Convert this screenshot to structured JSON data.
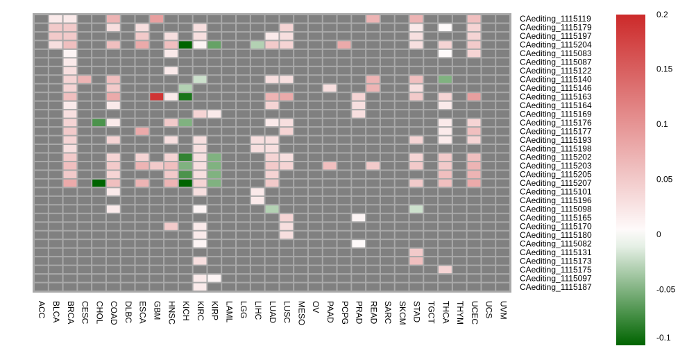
{
  "chart_data": {
    "type": "heatmap",
    "columns": [
      "ACC",
      "BLCA",
      "BRCA",
      "CESC",
      "CHOL",
      "COAD",
      "DLBC",
      "ESCA",
      "GBM",
      "HNSC",
      "KICH",
      "KIRC",
      "KIRP",
      "LAML",
      "LGG",
      "LIHC",
      "LUAD",
      "LUSC",
      "MESO",
      "OV",
      "PAAD",
      "PCPG",
      "PRAD",
      "READ",
      "SARC",
      "SKCM",
      "STAD",
      "TGCT",
      "THCA",
      "THYM",
      "UCEC",
      "UCS",
      "UVM"
    ],
    "rows": [
      "CAediting_1115119",
      "CAediting_1115179",
      "CAediting_1115197",
      "CAediting_1115204",
      "CAediting_1115083",
      "CAediting_1115087",
      "CAediting_1115122",
      "CAediting_1115140",
      "CAediting_1115146",
      "CAediting_1115163",
      "CAediting_1115164",
      "CAediting_1115169",
      "CAediting_1115176",
      "CAediting_1115177",
      "CAediting_1115193",
      "CAediting_1115198",
      "CAediting_1115202",
      "CAediting_1115203",
      "CAediting_1115205",
      "CAediting_1115207",
      "CAediting_1115101",
      "CAediting_1115196",
      "CAediting_1115098",
      "CAediting_1115165",
      "CAediting_1115170",
      "CAediting_1115180",
      "CAediting_1115082",
      "CAediting_1115131",
      "CAediting_1115173",
      "CAediting_1115175",
      "CAediting_1115097",
      "CAediting_1115187"
    ],
    "missing_color": "#808080",
    "cells": [
      {
        "row": 0,
        "col": 1,
        "value": 0.02
      },
      {
        "row": 0,
        "col": 2,
        "value": 0.02
      },
      {
        "row": 0,
        "col": 5,
        "value": 0.07
      },
      {
        "row": 0,
        "col": 8,
        "value": 0.09
      },
      {
        "row": 0,
        "col": 23,
        "value": 0.07
      },
      {
        "row": 0,
        "col": 26,
        "value": 0.07
      },
      {
        "row": 0,
        "col": 30,
        "value": 0.06
      },
      {
        "row": 1,
        "col": 1,
        "value": 0.05
      },
      {
        "row": 1,
        "col": 2,
        "value": 0.05
      },
      {
        "row": 1,
        "col": 5,
        "value": 0.03
      },
      {
        "row": 1,
        "col": 7,
        "value": 0.03
      },
      {
        "row": 1,
        "col": 11,
        "value": 0.03
      },
      {
        "row": 1,
        "col": 17,
        "value": 0.04
      },
      {
        "row": 1,
        "col": 26,
        "value": 0.02
      },
      {
        "row": 1,
        "col": 28,
        "value": 0.005
      },
      {
        "row": 1,
        "col": 30,
        "value": 0.04
      },
      {
        "row": 2,
        "col": 1,
        "value": 0.05
      },
      {
        "row": 2,
        "col": 2,
        "value": 0.05
      },
      {
        "row": 2,
        "col": 7,
        "value": 0.05
      },
      {
        "row": 2,
        "col": 9,
        "value": 0.03
      },
      {
        "row": 2,
        "col": 11,
        "value": 0.03
      },
      {
        "row": 2,
        "col": 16,
        "value": 0.02
      },
      {
        "row": 2,
        "col": 17,
        "value": 0.03
      },
      {
        "row": 2,
        "col": 26,
        "value": 0.03
      },
      {
        "row": 2,
        "col": 30,
        "value": 0.04
      },
      {
        "row": 3,
        "col": 1,
        "value": 0.03
      },
      {
        "row": 3,
        "col": 2,
        "value": 0.06
      },
      {
        "row": 3,
        "col": 5,
        "value": 0.06
      },
      {
        "row": 3,
        "col": 7,
        "value": 0.08
      },
      {
        "row": 3,
        "col": 9,
        "value": 0.06
      },
      {
        "row": 3,
        "col": 10,
        "value": -0.1
      },
      {
        "row": 3,
        "col": 11,
        "value": 0.01
      },
      {
        "row": 3,
        "col": 12,
        "value": -0.06
      },
      {
        "row": 3,
        "col": 15,
        "value": -0.03
      },
      {
        "row": 3,
        "col": 16,
        "value": 0.05
      },
      {
        "row": 3,
        "col": 17,
        "value": 0.04
      },
      {
        "row": 3,
        "col": 21,
        "value": 0.08
      },
      {
        "row": 3,
        "col": 26,
        "value": 0.03
      },
      {
        "row": 3,
        "col": 28,
        "value": 0.04
      },
      {
        "row": 3,
        "col": 30,
        "value": 0.05
      },
      {
        "row": 4,
        "col": 2,
        "value": 0.01
      },
      {
        "row": 4,
        "col": 9,
        "value": 0.02
      },
      {
        "row": 4,
        "col": 28,
        "value": 0.005
      },
      {
        "row": 4,
        "col": 30,
        "value": 0.04
      },
      {
        "row": 5,
        "col": 2,
        "value": 0.02
      },
      {
        "row": 6,
        "col": 2,
        "value": 0.03
      },
      {
        "row": 6,
        "col": 9,
        "value": 0.02
      },
      {
        "row": 7,
        "col": 2,
        "value": 0.04
      },
      {
        "row": 7,
        "col": 3,
        "value": 0.07
      },
      {
        "row": 7,
        "col": 5,
        "value": 0.06
      },
      {
        "row": 7,
        "col": 11,
        "value": -0.02
      },
      {
        "row": 7,
        "col": 16,
        "value": 0.03
      },
      {
        "row": 7,
        "col": 17,
        "value": 0.03
      },
      {
        "row": 7,
        "col": 23,
        "value": 0.07
      },
      {
        "row": 7,
        "col": 26,
        "value": 0.06
      },
      {
        "row": 7,
        "col": 28,
        "value": -0.05
      },
      {
        "row": 8,
        "col": 2,
        "value": 0.04
      },
      {
        "row": 8,
        "col": 5,
        "value": 0.05
      },
      {
        "row": 8,
        "col": 10,
        "value": -0.03
      },
      {
        "row": 8,
        "col": 20,
        "value": 0.03
      },
      {
        "row": 8,
        "col": 23,
        "value": 0.07
      },
      {
        "row": 8,
        "col": 26,
        "value": 0.03
      },
      {
        "row": 9,
        "col": 2,
        "value": 0.06
      },
      {
        "row": 9,
        "col": 5,
        "value": 0.08
      },
      {
        "row": 9,
        "col": 8,
        "value": 0.19
      },
      {
        "row": 9,
        "col": 9,
        "value": 0.02
      },
      {
        "row": 9,
        "col": 10,
        "value": -0.09
      },
      {
        "row": 9,
        "col": 16,
        "value": 0.07
      },
      {
        "row": 9,
        "col": 17,
        "value": 0.08
      },
      {
        "row": 9,
        "col": 22,
        "value": 0.04
      },
      {
        "row": 9,
        "col": 26,
        "value": 0.05
      },
      {
        "row": 9,
        "col": 28,
        "value": 0.04
      },
      {
        "row": 9,
        "col": 30,
        "value": 0.09
      },
      {
        "row": 10,
        "col": 2,
        "value": 0.02
      },
      {
        "row": 10,
        "col": 5,
        "value": 0.02
      },
      {
        "row": 10,
        "col": 16,
        "value": 0.04
      },
      {
        "row": 10,
        "col": 22,
        "value": 0.03
      },
      {
        "row": 10,
        "col": 28,
        "value": 0.02
      },
      {
        "row": 11,
        "col": 2,
        "value": 0.03
      },
      {
        "row": 11,
        "col": 11,
        "value": 0.04
      },
      {
        "row": 11,
        "col": 12,
        "value": 0.02
      },
      {
        "row": 11,
        "col": 22,
        "value": 0.03
      },
      {
        "row": 12,
        "col": 2,
        "value": 0.04
      },
      {
        "row": 12,
        "col": 4,
        "value": -0.07
      },
      {
        "row": 12,
        "col": 5,
        "value": 0.02
      },
      {
        "row": 12,
        "col": 9,
        "value": 0.05
      },
      {
        "row": 12,
        "col": 10,
        "value": -0.05
      },
      {
        "row": 12,
        "col": 16,
        "value": 0.02
      },
      {
        "row": 12,
        "col": 17,
        "value": 0.03
      },
      {
        "row": 12,
        "col": 28,
        "value": 0.02
      },
      {
        "row": 12,
        "col": 30,
        "value": 0.04
      },
      {
        "row": 13,
        "col": 2,
        "value": 0.05
      },
      {
        "row": 13,
        "col": 7,
        "value": 0.08
      },
      {
        "row": 13,
        "col": 17,
        "value": 0.04
      },
      {
        "row": 13,
        "col": 28,
        "value": 0.02
      },
      {
        "row": 13,
        "col": 30,
        "value": 0.06
      },
      {
        "row": 14,
        "col": 2,
        "value": 0.04
      },
      {
        "row": 14,
        "col": 5,
        "value": 0.04
      },
      {
        "row": 14,
        "col": 9,
        "value": 0.03
      },
      {
        "row": 14,
        "col": 11,
        "value": 0.03
      },
      {
        "row": 14,
        "col": 15,
        "value": 0.03
      },
      {
        "row": 14,
        "col": 16,
        "value": 0.03
      },
      {
        "row": 14,
        "col": 26,
        "value": 0.04
      },
      {
        "row": 14,
        "col": 28,
        "value": 0.02
      },
      {
        "row": 14,
        "col": 30,
        "value": 0.04
      },
      {
        "row": 15,
        "col": 2,
        "value": 0.03
      },
      {
        "row": 15,
        "col": 11,
        "value": 0.03
      },
      {
        "row": 15,
        "col": 15,
        "value": 0.03
      },
      {
        "row": 15,
        "col": 16,
        "value": 0.03
      },
      {
        "row": 16,
        "col": 2,
        "value": 0.05
      },
      {
        "row": 16,
        "col": 5,
        "value": 0.04
      },
      {
        "row": 16,
        "col": 7,
        "value": 0.04
      },
      {
        "row": 16,
        "col": 9,
        "value": 0.04
      },
      {
        "row": 16,
        "col": 10,
        "value": -0.08
      },
      {
        "row": 16,
        "col": 11,
        "value": 0.03
      },
      {
        "row": 16,
        "col": 12,
        "value": -0.05
      },
      {
        "row": 16,
        "col": 16,
        "value": 0.04
      },
      {
        "row": 16,
        "col": 17,
        "value": 0.03
      },
      {
        "row": 16,
        "col": 26,
        "value": 0.04
      },
      {
        "row": 16,
        "col": 28,
        "value": 0.05
      },
      {
        "row": 16,
        "col": 30,
        "value": 0.06
      },
      {
        "row": 17,
        "col": 2,
        "value": 0.06
      },
      {
        "row": 17,
        "col": 5,
        "value": 0.05
      },
      {
        "row": 17,
        "col": 7,
        "value": 0.07
      },
      {
        "row": 17,
        "col": 8,
        "value": 0.05
      },
      {
        "row": 17,
        "col": 9,
        "value": 0.06
      },
      {
        "row": 17,
        "col": 10,
        "value": -0.05
      },
      {
        "row": 17,
        "col": 11,
        "value": 0.03
      },
      {
        "row": 17,
        "col": 12,
        "value": -0.05
      },
      {
        "row": 17,
        "col": 16,
        "value": 0.05
      },
      {
        "row": 17,
        "col": 17,
        "value": 0.04
      },
      {
        "row": 17,
        "col": 20,
        "value": 0.06
      },
      {
        "row": 17,
        "col": 23,
        "value": 0.05
      },
      {
        "row": 17,
        "col": 26,
        "value": 0.05
      },
      {
        "row": 17,
        "col": 28,
        "value": 0.05
      },
      {
        "row": 17,
        "col": 30,
        "value": 0.07
      },
      {
        "row": 18,
        "col": 2,
        "value": 0.05
      },
      {
        "row": 18,
        "col": 5,
        "value": 0.04
      },
      {
        "row": 18,
        "col": 9,
        "value": 0.05
      },
      {
        "row": 18,
        "col": 10,
        "value": -0.07
      },
      {
        "row": 18,
        "col": 11,
        "value": 0.03
      },
      {
        "row": 18,
        "col": 12,
        "value": -0.05
      },
      {
        "row": 18,
        "col": 16,
        "value": 0.04
      },
      {
        "row": 18,
        "col": 28,
        "value": 0.06
      },
      {
        "row": 18,
        "col": 30,
        "value": 0.07
      },
      {
        "row": 19,
        "col": 2,
        "value": 0.08
      },
      {
        "row": 19,
        "col": 4,
        "value": -0.1
      },
      {
        "row": 19,
        "col": 5,
        "value": 0.06
      },
      {
        "row": 19,
        "col": 7,
        "value": 0.07
      },
      {
        "row": 19,
        "col": 9,
        "value": 0.07
      },
      {
        "row": 19,
        "col": 10,
        "value": -0.1
      },
      {
        "row": 19,
        "col": 11,
        "value": 0.04
      },
      {
        "row": 19,
        "col": 12,
        "value": -0.05
      },
      {
        "row": 19,
        "col": 16,
        "value": 0.05
      },
      {
        "row": 19,
        "col": 26,
        "value": 0.05
      },
      {
        "row": 19,
        "col": 28,
        "value": 0.06
      },
      {
        "row": 19,
        "col": 30,
        "value": 0.08
      },
      {
        "row": 20,
        "col": 5,
        "value": 0.02
      },
      {
        "row": 20,
        "col": 11,
        "value": 0.03
      },
      {
        "row": 20,
        "col": 15,
        "value": 0.02
      },
      {
        "row": 21,
        "col": 15,
        "value": 0.02
      },
      {
        "row": 22,
        "col": 5,
        "value": 0.02
      },
      {
        "row": 22,
        "col": 11,
        "value": 0.01
      },
      {
        "row": 22,
        "col": 16,
        "value": -0.03
      },
      {
        "row": 22,
        "col": 26,
        "value": -0.02
      },
      {
        "row": 23,
        "col": 17,
        "value": 0.04
      },
      {
        "row": 23,
        "col": 22,
        "value": 0.01
      },
      {
        "row": 24,
        "col": 9,
        "value": 0.05
      },
      {
        "row": 24,
        "col": 11,
        "value": 0.02
      },
      {
        "row": 24,
        "col": 17,
        "value": 0.03
      },
      {
        "row": 25,
        "col": 11,
        "value": 0.02
      },
      {
        "row": 25,
        "col": 17,
        "value": 0.03
      },
      {
        "row": 26,
        "col": 11,
        "value": 0.01
      },
      {
        "row": 26,
        "col": 22,
        "value": 0.005
      },
      {
        "row": 27,
        "col": 26,
        "value": 0.05
      },
      {
        "row": 28,
        "col": 11,
        "value": 0.03
      },
      {
        "row": 28,
        "col": 26,
        "value": 0.06
      },
      {
        "row": 29,
        "col": 28,
        "value": 0.04
      },
      {
        "row": 30,
        "col": 11,
        "value": 0.02
      },
      {
        "row": 30,
        "col": 12,
        "value": 0.01
      },
      {
        "row": 31,
        "col": 11,
        "value": 0.02
      }
    ],
    "colorbar": {
      "min": -0.1,
      "max": 0.2,
      "ticks": [
        0.2,
        0.15,
        0.1,
        0.05,
        0,
        -0.05,
        -0.1
      ],
      "tick_labels": [
        "0.2",
        "0.15",
        "0.1",
        "0.05",
        "0",
        "-0.05",
        "-0.1"
      ],
      "colors": {
        "low": "#006400",
        "mid": "#ffffff",
        "high": "#cc2a2a"
      }
    }
  }
}
